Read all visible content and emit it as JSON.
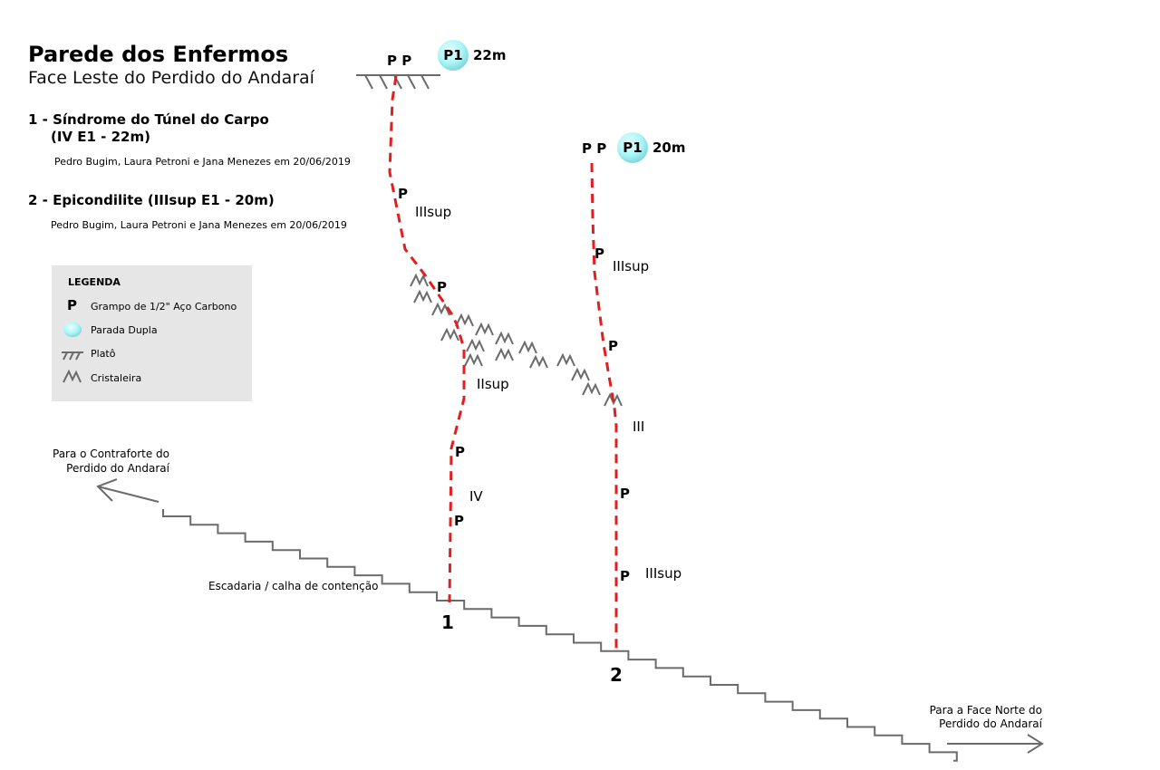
{
  "header": {
    "title": "Parede dos Enfermos",
    "subtitle": "Face Leste do Perdido do Andaraí"
  },
  "routes": [
    {
      "number": "1",
      "name": "1 - Síndrome do Túnel do Carpo",
      "grade_line": "(IV E1 - 22m)",
      "credit": "Pedro Bugim, Laura Petroni e Jana Menezes em 20/06/2019",
      "anchor": {
        "bolts": "P P",
        "station": "P1",
        "length": "22m"
      },
      "pitch_grades": [
        "IIIsup",
        "IIsup",
        "IV"
      ]
    },
    {
      "number": "2",
      "name": "2 - Epicondilite (IIIsup E1 - 20m)",
      "credit": "Pedro Bugim, Laura Petroni e Jana Menezes em 20/06/2019",
      "anchor": {
        "bolts": "P P",
        "station": "P1",
        "length": "20m"
      },
      "pitch_grades": [
        "IIIsup",
        "III",
        "IIIsup"
      ]
    }
  ],
  "bolt_symbol": "P",
  "legend": {
    "title": "LEGENDA",
    "items": [
      {
        "symbol": "bolt",
        "label": "Grampo de 1/2\" Aço Carbono"
      },
      {
        "symbol": "station",
        "label": "Parada Dupla"
      },
      {
        "symbol": "plateau",
        "label": "Platô"
      },
      {
        "symbol": "crystals",
        "label": "Cristaleira"
      }
    ]
  },
  "labels": {
    "stairs": "Escadaria / calha de contenção",
    "left_direction": [
      "Para o Contraforte do",
      "Perdido do Andaraí"
    ],
    "right_direction": [
      "Para a Face Norte do",
      "Perdido do Andaraí"
    ]
  },
  "colors": {
    "route": "#e02020",
    "terrain": "#6b6b6b",
    "station_fill": "#aef6f8",
    "legend_bg": "#e6e6e6"
  }
}
